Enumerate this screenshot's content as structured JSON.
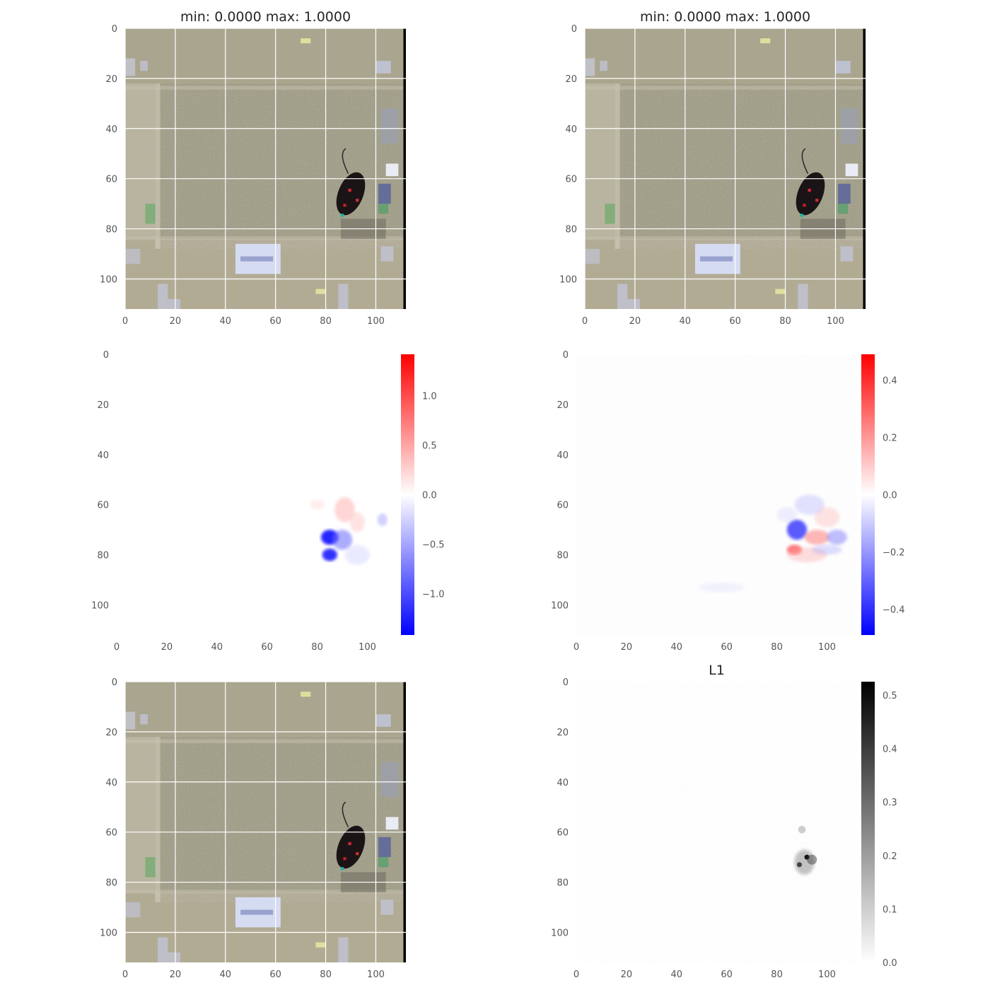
{
  "chart_data": [
    {
      "type": "image",
      "panel": "top-left",
      "title": "min: 0.0000 max: 1.0000",
      "x_ticks": [
        "0",
        "20",
        "40",
        "60",
        "80",
        "100"
      ],
      "y_ticks": [
        "0",
        "20",
        "40",
        "60",
        "80",
        "100"
      ],
      "xlim": [
        0,
        112
      ],
      "ylim": [
        112,
        0
      ],
      "grid": true
    },
    {
      "type": "image",
      "panel": "top-right",
      "title": "min: 0.0000 max: 1.0000",
      "x_ticks": [
        "0",
        "20",
        "40",
        "60",
        "80",
        "100"
      ],
      "y_ticks": [
        "0",
        "20",
        "40",
        "60",
        "80",
        "100"
      ],
      "xlim": [
        0,
        112
      ],
      "ylim": [
        112,
        0
      ],
      "grid": true
    },
    {
      "type": "heatmap",
      "panel": "middle-left",
      "colormap": "bwr",
      "x_ticks": [
        "0",
        "20",
        "40",
        "60",
        "80",
        "100"
      ],
      "y_ticks": [
        "0",
        "20",
        "40",
        "60",
        "80",
        "100"
      ],
      "xlim": [
        0,
        112
      ],
      "ylim": [
        112,
        0
      ],
      "colorbar": {
        "range": [
          -1.42,
          1.42
        ],
        "ticks": [
          1.0,
          0.5,
          0.0,
          -0.5,
          -1.0
        ],
        "tick_labels": [
          "1.0",
          "0.5",
          "0.0",
          "−0.5",
          "−1.0"
        ]
      },
      "grid": false
    },
    {
      "type": "heatmap",
      "panel": "middle-right",
      "colormap": "bwr",
      "x_ticks": [
        "0",
        "20",
        "40",
        "60",
        "80",
        "100"
      ],
      "y_ticks": [
        "0",
        "20",
        "40",
        "60",
        "80",
        "100"
      ],
      "xlim": [
        0,
        112
      ],
      "ylim": [
        112,
        0
      ],
      "colorbar": {
        "range": [
          -0.49,
          0.49
        ],
        "ticks": [
          0.4,
          0.2,
          0.0,
          -0.2,
          -0.4
        ],
        "tick_labels": [
          "0.4",
          "0.2",
          "0.0",
          "−0.2",
          "−0.4"
        ]
      },
      "grid": false
    },
    {
      "type": "image",
      "panel": "bottom-left",
      "title": "",
      "x_ticks": [
        "0",
        "20",
        "40",
        "60",
        "80",
        "100"
      ],
      "y_ticks": [
        "0",
        "20",
        "40",
        "60",
        "80",
        "100"
      ],
      "xlim": [
        0,
        112
      ],
      "ylim": [
        112,
        0
      ],
      "grid": true
    },
    {
      "type": "heatmap",
      "panel": "bottom-right",
      "title": "L1",
      "colormap": "gray_r",
      "x_ticks": [
        "0",
        "20",
        "40",
        "60",
        "80",
        "100"
      ],
      "y_ticks": [
        "0",
        "20",
        "40",
        "60",
        "80",
        "100"
      ],
      "xlim": [
        0,
        112
      ],
      "ylim": [
        112,
        0
      ],
      "colorbar": {
        "range": [
          0.0,
          0.525
        ],
        "ticks": [
          0.5,
          0.4,
          0.3,
          0.2,
          0.1,
          0.0
        ],
        "tick_labels": [
          "0.5",
          "0.4",
          "0.3",
          "0.2",
          "0.1",
          "0.0"
        ]
      },
      "grid": false
    }
  ],
  "colors": {
    "floor": "#a9a58e",
    "wall": "#b3ac96",
    "mouse": "#1a1416",
    "positive": "#ff0000",
    "negative": "#0000ff"
  }
}
